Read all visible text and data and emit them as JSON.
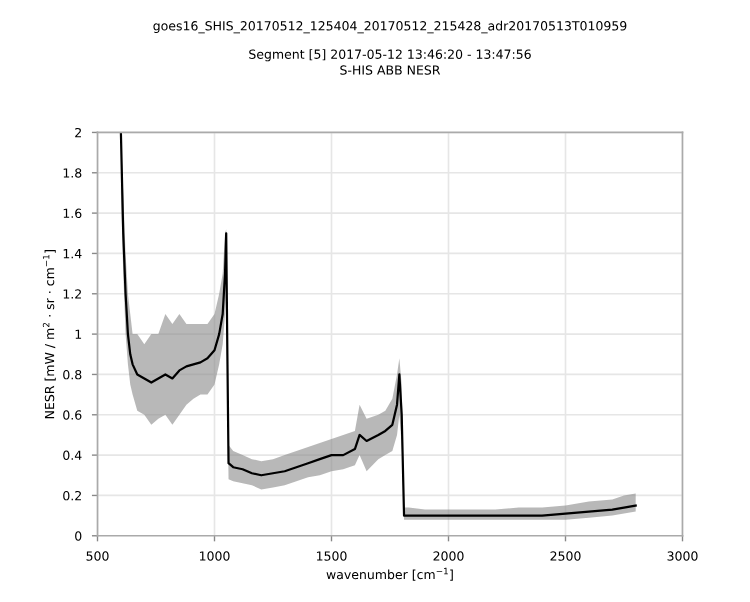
{
  "chart_data": {
    "type": "line",
    "title": "goes16_SHIS_20170512_125404_20170512_215428_adr20170513T010959",
    "subtitle": "Segment [5] 2017-05-12 13:46:20 - 13:47:56\nS-HIS ABB NESR",
    "xlabel": "wavenumber [cm$^{−1}$]",
    "ylabel": "NESR [mW / m$^{2}$ · sr · cm$^{−1}$]",
    "xlim": [
      500,
      3000
    ],
    "ylim": [
      0,
      2
    ],
    "xticks": [
      500,
      1000,
      1500,
      2000,
      2500,
      3000
    ],
    "yticks": [
      0,
      0.2,
      0.4,
      0.6,
      0.8,
      1,
      1.2,
      1.4,
      1.6,
      1.8,
      2
    ],
    "grid": true,
    "series": [
      {
        "color": "#000000",
        "x": [
          600,
          610,
          620,
          630,
          640,
          650,
          670,
          700,
          730,
          760,
          790,
          820,
          850,
          880,
          910,
          940,
          970,
          1000,
          1020,
          1035,
          1045,
          1050,
          1055,
          1060,
          1080,
          1120,
          1160,
          1200,
          1250,
          1300,
          1350,
          1400,
          1450,
          1500,
          1550,
          1600,
          1620,
          1650,
          1700,
          1730,
          1760,
          1780,
          1790,
          1800,
          1810,
          1830,
          1900,
          2000,
          2100,
          2200,
          2300,
          2400,
          2500,
          2600,
          2700,
          2750,
          2800
        ],
        "values": [
          2.0,
          1.5,
          1.2,
          1.0,
          0.9,
          0.85,
          0.8,
          0.78,
          0.76,
          0.78,
          0.8,
          0.78,
          0.82,
          0.84,
          0.85,
          0.86,
          0.88,
          0.92,
          1.0,
          1.1,
          1.3,
          1.5,
          0.9,
          0.36,
          0.34,
          0.33,
          0.31,
          0.3,
          0.31,
          0.32,
          0.34,
          0.36,
          0.38,
          0.4,
          0.4,
          0.43,
          0.5,
          0.47,
          0.5,
          0.52,
          0.55,
          0.65,
          0.8,
          0.6,
          0.1,
          0.1,
          0.1,
          0.1,
          0.1,
          0.1,
          0.1,
          0.1,
          0.11,
          0.12,
          0.13,
          0.14,
          0.15
        ],
        "lower": [
          1.7,
          1.3,
          1.0,
          0.85,
          0.75,
          0.7,
          0.62,
          0.6,
          0.55,
          0.58,
          0.6,
          0.55,
          0.6,
          0.65,
          0.68,
          0.7,
          0.7,
          0.75,
          0.85,
          0.95,
          1.1,
          1.2,
          0.7,
          0.28,
          0.27,
          0.26,
          0.25,
          0.23,
          0.24,
          0.25,
          0.27,
          0.29,
          0.3,
          0.32,
          0.33,
          0.35,
          0.4,
          0.32,
          0.38,
          0.4,
          0.42,
          0.5,
          0.6,
          0.45,
          0.08,
          0.08,
          0.08,
          0.08,
          0.08,
          0.08,
          0.08,
          0.08,
          0.08,
          0.09,
          0.1,
          0.11,
          0.12
        ],
        "upper": [
          2.0,
          1.7,
          1.4,
          1.2,
          1.1,
          1.0,
          1.0,
          0.95,
          1.0,
          1.0,
          1.1,
          1.05,
          1.1,
          1.05,
          1.05,
          1.05,
          1.05,
          1.1,
          1.2,
          1.3,
          1.5,
          1.52,
          1.1,
          0.45,
          0.42,
          0.4,
          0.38,
          0.37,
          0.38,
          0.4,
          0.42,
          0.44,
          0.46,
          0.48,
          0.5,
          0.52,
          0.65,
          0.58,
          0.6,
          0.62,
          0.68,
          0.8,
          0.88,
          0.75,
          0.14,
          0.14,
          0.13,
          0.13,
          0.13,
          0.13,
          0.14,
          0.14,
          0.15,
          0.17,
          0.18,
          0.2,
          0.21
        ]
      }
    ]
  }
}
